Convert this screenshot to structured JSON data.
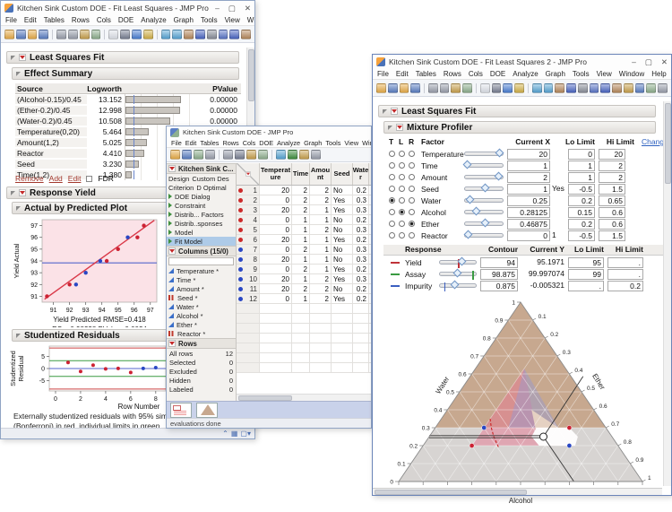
{
  "app": {
    "menu": [
      "File",
      "Edit",
      "Tables",
      "Rows",
      "Cols",
      "DOE",
      "Analyze",
      "Graph",
      "Tools",
      "View",
      "Window",
      "Help"
    ],
    "window_controls": {
      "minimize": "–",
      "maximize": "▢",
      "close": "✕"
    },
    "status_icons": [
      "up-arrow-icon",
      "grid-icon",
      "box-dropdown-icon"
    ]
  },
  "win1": {
    "title": "Kitchen Sink Custom DOE - Fit Least Squares - JMP Pro",
    "toolbar": [
      [
        "open",
        "#e9ae4a"
      ],
      [
        "save-all",
        "#5b7fc4"
      ],
      [
        "open-recent",
        "#e9ae4a"
      ],
      [
        "save",
        "#5b7fc4"
      ],
      [
        "cut",
        "#9aa0ad"
      ],
      [
        "copy",
        "#9aa0ad"
      ],
      [
        "paste",
        "#caa24f"
      ],
      [
        "journal",
        "#8fb08f"
      ],
      [
        "selection",
        "#dfe3ea"
      ],
      [
        "zoom",
        "#7a8194"
      ],
      [
        "arrow",
        "#4a7fd4"
      ],
      [
        "help",
        "#d4b34a"
      ],
      [
        "grabber",
        "#58a6d6"
      ],
      [
        "globe",
        "#58a6d6"
      ],
      [
        "lasso",
        "#b88a5e"
      ],
      [
        "brush",
        "#4a66c4"
      ],
      [
        "magnifier",
        "#8a8f9a"
      ],
      [
        "crosshair",
        "#5a76c8"
      ],
      [
        "plus",
        "#4a66c4"
      ],
      [
        "pencil",
        "#b88a5e"
      ]
    ],
    "least_squares_header": "Least Squares Fit",
    "effect_summary": {
      "header": "Effect Summary",
      "columns": [
        "Source",
        "Logworth",
        "PValue"
      ],
      "rows": [
        {
          "source": "(Alcohol-0.15)/0.45",
          "logworth": "13.152",
          "value": 13.152,
          "pvalue": "0.00000"
        },
        {
          "source": "(Ether-0.2)/0.45",
          "logworth": "12.998",
          "value": 12.998,
          "pvalue": "0.00000"
        },
        {
          "source": "(Water-0.2)/0.45",
          "logworth": "10.508",
          "value": 10.508,
          "pvalue": "0.00000"
        },
        {
          "source": "Temperature(0,20)",
          "logworth": "5.464",
          "value": 5.464,
          "pvalue": "0.00000"
        },
        {
          "source": "Amount(1,2)",
          "logworth": "5.025",
          "value": 5.025,
          "pvalue": "0.00001"
        },
        {
          "source": "Reactor",
          "logworth": "4.410",
          "value": 4.41,
          "pvalue": ""
        },
        {
          "source": "Seed",
          "logworth": "3.230",
          "value": 3.23,
          "pvalue": ""
        },
        {
          "source": "Time(1,2)",
          "logworth": "1.380",
          "value": 1.38,
          "pvalue": ""
        }
      ],
      "axis_max": 18,
      "threshold": 2
    },
    "links": {
      "remove": "Remove",
      "add": "Add",
      "edit": "Edit",
      "fdr": "FDR"
    },
    "response_header": "Response Yield",
    "actual_header": "Actual by Predicted Plot",
    "residuals_header": "Studentized Residuals",
    "footnote_line1": "Externally studentized residuals with 95% simult",
    "footnote_line2": "(Bonferroni) in red, individual limits in green."
  },
  "win2": {
    "title": "Kitchen Sink Custom DOE - JMP Pro",
    "toolbar": [
      [
        "open",
        "#e9ae4a"
      ],
      [
        "save",
        "#5b7fc4"
      ],
      [
        "excel",
        "#8fb08f"
      ],
      [
        "cut",
        "#9aa0ad"
      ],
      [
        "copy",
        "#9aa0ad"
      ],
      [
        "zoom",
        "#7a8194"
      ],
      [
        "paste",
        "#caa24f"
      ],
      [
        "table",
        "#8fb08f"
      ],
      [
        "chart",
        "#58a6d6"
      ],
      [
        "flag",
        "#3f8f3f"
      ],
      [
        "layout",
        "#caa24f"
      ],
      [
        "link",
        "#9aa0ad"
      ]
    ],
    "outline": {
      "title": "Kitchen Sink C...",
      "design_label": "Design",
      "design_value": "Custom Des",
      "criterion_label": "Criterion",
      "criterion_value": "D Optimal",
      "tree": [
        {
          "label": "DOE Dialog",
          "selected": false
        },
        {
          "label": "Constraint",
          "selected": false
        },
        {
          "label": "Distrib... Factors",
          "selected": false
        },
        {
          "label": "Distrib..sponses",
          "selected": false
        },
        {
          "label": "Model",
          "selected": false
        },
        {
          "label": "Fit Model",
          "selected": true
        }
      ]
    },
    "columns_panel": {
      "header": "Columns (15/0)",
      "suffix": "*",
      "items": [
        {
          "name": "Temperature",
          "type": "continuous"
        },
        {
          "name": "Time",
          "type": "continuous"
        },
        {
          "name": "Amount",
          "type": "continuous"
        },
        {
          "name": "Seed",
          "type": "nominal"
        },
        {
          "name": "Water",
          "type": "continuous"
        },
        {
          "name": "Alcohol",
          "type": "continuous"
        },
        {
          "name": "Ether",
          "type": "continuous"
        },
        {
          "name": "Reactor",
          "type": "nominal"
        }
      ]
    },
    "rows_panel": {
      "header": "Rows",
      "stats": [
        [
          "All rows",
          "12"
        ],
        [
          "Selected",
          "0"
        ],
        [
          "Excluded",
          "0"
        ],
        [
          "Hidden",
          "0"
        ],
        [
          "Labeled",
          "0"
        ]
      ]
    },
    "table": {
      "columns": [
        "Temperat ure",
        "Time",
        "Amou nt",
        "Seed",
        "Wate r"
      ],
      "rows": [
        {
          "n": "1",
          "dot": "red",
          "v": [
            "20",
            "2",
            "2",
            "No",
            "0.2"
          ]
        },
        {
          "n": "2",
          "dot": "red",
          "v": [
            "0",
            "2",
            "2",
            "Yes",
            "0.3"
          ]
        },
        {
          "n": "3",
          "dot": "red",
          "v": [
            "20",
            "2",
            "1",
            "Yes",
            "0.3"
          ]
        },
        {
          "n": "4",
          "dot": "red",
          "v": [
            "0",
            "1",
            "1",
            "No",
            "0.2"
          ]
        },
        {
          "n": "5",
          "dot": "red",
          "v": [
            "0",
            "1",
            "2",
            "No",
            "0.3"
          ]
        },
        {
          "n": "6",
          "dot": "red",
          "v": [
            "20",
            "1",
            "1",
            "Yes",
            "0.2"
          ]
        },
        {
          "n": "7",
          "dot": "blue",
          "v": [
            "0",
            "2",
            "1",
            "No",
            "0.3"
          ]
        },
        {
          "n": "8",
          "dot": "blue",
          "v": [
            "20",
            "1",
            "1",
            "No",
            "0.3"
          ]
        },
        {
          "n": "9",
          "dot": "blue",
          "v": [
            "0",
            "2",
            "1",
            "Yes",
            "0.2"
          ]
        },
        {
          "n": "10",
          "dot": "blue",
          "v": [
            "20",
            "1",
            "2",
            "Yes",
            "0.3"
          ]
        },
        {
          "n": "11",
          "dot": "blue",
          "v": [
            "20",
            "2",
            "2",
            "No",
            "0.2"
          ]
        },
        {
          "n": "12",
          "dot": "blue",
          "v": [
            "0",
            "1",
            "2",
            "Yes",
            "0.2"
          ]
        }
      ]
    },
    "status": "evaluations done"
  },
  "win3": {
    "title": "Kitchen Sink Custom DOE - Fit Least Squares 2 - JMP Pro",
    "toolbar": [
      [
        "open",
        "#e9ae4a"
      ],
      [
        "save-all",
        "#5b7fc4"
      ],
      [
        "open-recent",
        "#e9ae4a"
      ],
      [
        "save",
        "#5b7fc4"
      ],
      [
        "cut",
        "#9aa0ad"
      ],
      [
        "copy",
        "#9aa0ad"
      ],
      [
        "paste",
        "#caa24f"
      ],
      [
        "journal",
        "#8fb08f"
      ],
      [
        "selection",
        "#dfe3ea"
      ],
      [
        "zoom",
        "#7a8194"
      ],
      [
        "arrow",
        "#4a7fd4"
      ],
      [
        "help",
        "#d4b34a"
      ],
      [
        "grabber",
        "#58a6d6"
      ],
      [
        "globe",
        "#58a6d6"
      ],
      [
        "lasso",
        "#b88a5e"
      ],
      [
        "brush",
        "#4a66c4"
      ],
      [
        "magnifier",
        "#8a8f9a"
      ],
      [
        "crosshair",
        "#5a76c8"
      ],
      [
        "plus",
        "#4a66c4"
      ],
      [
        "pencil",
        "#b88a5e"
      ],
      [
        "layout",
        "#caa24f"
      ],
      [
        "list",
        "#5b7fc4"
      ],
      [
        "shapes",
        "#8fb08f"
      ],
      [
        "oval",
        "#9aa0ad"
      ]
    ],
    "least_squares_header": "Least Squares Fit",
    "profiler_header": "Mixture Profiler",
    "change_link": "Change",
    "factor_table": {
      "radio_headers": [
        "T",
        "L",
        "R"
      ],
      "columns": [
        "Factor",
        "Current X",
        "Lo Limit",
        "Hi Limit"
      ],
      "rows": [
        {
          "factor": "Temperature",
          "radio": "",
          "slider": 0.92,
          "current": "20",
          "extra": "",
          "lo": "0",
          "hi": "20"
        },
        {
          "factor": "Time",
          "radio": "",
          "slider": 0.08,
          "current": "1",
          "extra": "",
          "lo": "1",
          "hi": "2"
        },
        {
          "factor": "Amount",
          "radio": "",
          "slider": 0.9,
          "current": "2",
          "extra": "",
          "lo": "1",
          "hi": "2"
        },
        {
          "factor": "Seed",
          "radio": "",
          "slider": 0.55,
          "current": "1",
          "extra": "Yes",
          "lo": "-0.5",
          "hi": "1.5"
        },
        {
          "factor": "Water",
          "radio": "T",
          "slider": 0.14,
          "current": "0.25",
          "extra": "",
          "lo": "0.2",
          "hi": "0.65"
        },
        {
          "factor": "Alcohol",
          "radio": "L",
          "slider": 0.3,
          "current": "0.28125",
          "extra": "",
          "lo": "0.15",
          "hi": "0.6"
        },
        {
          "factor": "Ether",
          "radio": "R",
          "slider": 0.55,
          "current": "0.46875",
          "extra": "",
          "lo": "0.2",
          "hi": "0.6"
        },
        {
          "factor": "Reactor",
          "radio": "",
          "slider": 0.1,
          "current": "0",
          "extra": "1",
          "lo": "-0.5",
          "hi": "1.5"
        }
      ]
    },
    "response_table": {
      "columns": [
        "Response",
        "Contour",
        "Current Y",
        "Lo Limit",
        "Hi Limit"
      ],
      "rows": [
        {
          "name": "Yield",
          "color": "#c03339",
          "slider": 0.62,
          "marker": 0.5,
          "contour": "94",
          "current": "95.1971",
          "lo": "95",
          "hi": "."
        },
        {
          "name": "Assay",
          "color": "#3a9a42",
          "slider": 0.5,
          "marker": 0.9,
          "contour": "98.875",
          "current": "99.997074",
          "lo": "99",
          "hi": "."
        },
        {
          "name": "Impurity",
          "color": "#3b5fc0",
          "slider": 0.42,
          "marker": 0.12,
          "contour": "0.875",
          "current": "-0.005321",
          "lo": ".",
          "hi": "0.2"
        }
      ]
    }
  },
  "chart_data": [
    {
      "id": "effect_summary_bars",
      "type": "bar",
      "categories": [
        "(Alcohol-0.15)/0.45",
        "(Ether-0.2)/0.45",
        "(Water-0.2)/0.45",
        "Temperature(0,20)",
        "Amount(1,2)",
        "Reactor",
        "Seed",
        "Time(1,2)"
      ],
      "values": [
        13.152,
        12.998,
        10.508,
        5.464,
        5.025,
        4.41,
        3.23,
        1.38
      ],
      "threshold": 2,
      "xlim": [
        0,
        18
      ],
      "title": "Effect Summary Logworth"
    },
    {
      "id": "actual_by_predicted",
      "type": "scatter",
      "xlabel": "Yield Predicted RMSE=0.418",
      "sublabel": "RSq=0.98238 PValue=0.0024",
      "ylabel": "Yield Actual",
      "xlim": [
        90.3,
        97.4
      ],
      "ylim": [
        90.5,
        97.5
      ],
      "xticks": [
        91,
        92,
        93,
        94,
        95,
        96,
        97
      ],
      "yticks": [
        91,
        92,
        93,
        94,
        95,
        96,
        97
      ],
      "mean_line": 93.83,
      "fit_line": {
        "x1": 90.45,
        "y1": 90.75,
        "x2": 97.25,
        "y2": 97.45
      },
      "points": [
        {
          "x": 90.6,
          "y": 91,
          "c": "red"
        },
        {
          "x": 92.0,
          "y": 92,
          "c": "red"
        },
        {
          "x": 92.4,
          "y": 92,
          "c": "blue"
        },
        {
          "x": 93.0,
          "y": 93,
          "c": "blue"
        },
        {
          "x": 93.9,
          "y": 94,
          "c": "blue"
        },
        {
          "x": 94.3,
          "y": 94,
          "c": "red"
        },
        {
          "x": 95.0,
          "y": 95,
          "c": "red"
        },
        {
          "x": 95.6,
          "y": 96,
          "c": "blue"
        },
        {
          "x": 96.2,
          "y": 96,
          "c": "red"
        },
        {
          "x": 96.6,
          "y": 97,
          "c": "red"
        }
      ]
    },
    {
      "id": "studentized_residuals",
      "type": "scatter",
      "xlabel": "Row Number",
      "ylabel": [
        "Studentized",
        "Residual"
      ],
      "xlim": [
        -0.5,
        8.8
      ],
      "ylim": [
        -9.2,
        9.2
      ],
      "xticks": [
        0,
        2,
        4,
        6,
        8
      ],
      "yticks": [
        -5,
        0,
        5
      ],
      "zero_line": 0,
      "green_limits": [
        3.2,
        -3.2
      ],
      "red_limits": [
        8.4,
        -8.4
      ],
      "points": [
        {
          "x": 1,
          "y": 2.5,
          "c": "red"
        },
        {
          "x": 2,
          "y": -1.2,
          "c": "red"
        },
        {
          "x": 3,
          "y": 1.4,
          "c": "red"
        },
        {
          "x": 4,
          "y": -0.15,
          "c": "red"
        },
        {
          "x": 5,
          "y": 0.05,
          "c": "red"
        },
        {
          "x": 6,
          "y": -1.6,
          "c": "red"
        },
        {
          "x": 7,
          "y": 0.05,
          "c": "blue"
        },
        {
          "x": 8,
          "y": 0.35,
          "c": "blue"
        }
      ]
    },
    {
      "id": "mixture_ternary",
      "type": "ternary",
      "axes": {
        "left": "Water",
        "right": "Ether",
        "bottom": "Alcohol"
      },
      "tick_step": 0.1,
      "points": [
        {
          "water": 0.3,
          "ether": 0.2,
          "alcohol": 0.5,
          "c": "blue"
        },
        {
          "water": 0.2,
          "ether": 0.2,
          "alcohol": 0.6,
          "c": "red"
        },
        {
          "water": 0.3,
          "ether": 0.55,
          "alcohol": 0.15,
          "c": "red"
        },
        {
          "water": 0.2,
          "ether": 0.6,
          "alcohol": 0.2,
          "c": "blue"
        }
      ],
      "current": {
        "water": 0.25,
        "ether": 0.46875,
        "alcohol": 0.28125
      },
      "regions": {
        "tan": {
          "fill": "#c7a88f",
          "poly": [
            [
              0.3,
              0
            ],
            [
              1,
              0
            ],
            [
              0.3,
              0.7
            ]
          ]
        },
        "gray": {
          "fill": "#d7d4d2",
          "poly": [
            [
              0,
              0
            ],
            [
              0.3,
              0
            ],
            [
              0.3,
              0.7
            ],
            [
              0,
              1
            ]
          ]
        },
        "pink": {
          "fill": "rgba(231,120,145,0.50)",
          "poly": [
            [
              0.63,
              0.2
            ],
            [
              0.2,
              0.2
            ],
            [
              0.2,
              0.476
            ]
          ]
        },
        "lavender": {
          "fill": "rgba(148,153,212,0.45)",
          "poly": [
            [
              0.63,
              0.2
            ],
            [
              0.3,
              0.3
            ],
            [
              0.3,
              0.505
            ]
          ]
        },
        "peach": {
          "fill": "rgba(247,226,200,0.75)",
          "poly": [
            [
              0.4,
              0.345
            ],
            [
              0.2,
              0.476
            ],
            [
              0.2,
              0.56
            ],
            [
              0.3,
              0.505
            ]
          ]
        },
        "white": {
          "fill": "#fdfcfc",
          "poly": [
            [
              0.3,
              0.415
            ],
            [
              0.3,
              0.55
            ],
            [
              0.25,
              0.61
            ],
            [
              0.2,
              0.624
            ],
            [
              0.2,
              0.476
            ],
            [
              0.25,
              0.42
            ]
          ]
        }
      },
      "contour_dash": [
        [
          0.35,
          0.2
        ],
        [
          0.3,
          0.23
        ],
        [
          0.25,
          0.265
        ],
        [
          0.19,
          0.315
        ]
      ]
    }
  ],
  "colors": {
    "point_red": "#cc2233",
    "point_blue": "#2947c4",
    "fit_red": "#d93848",
    "mean_blue": "#5566cc",
    "green_limit": "#3a9a42",
    "red_limit": "#cc4444",
    "plot_pink": "#fbe2e7"
  }
}
